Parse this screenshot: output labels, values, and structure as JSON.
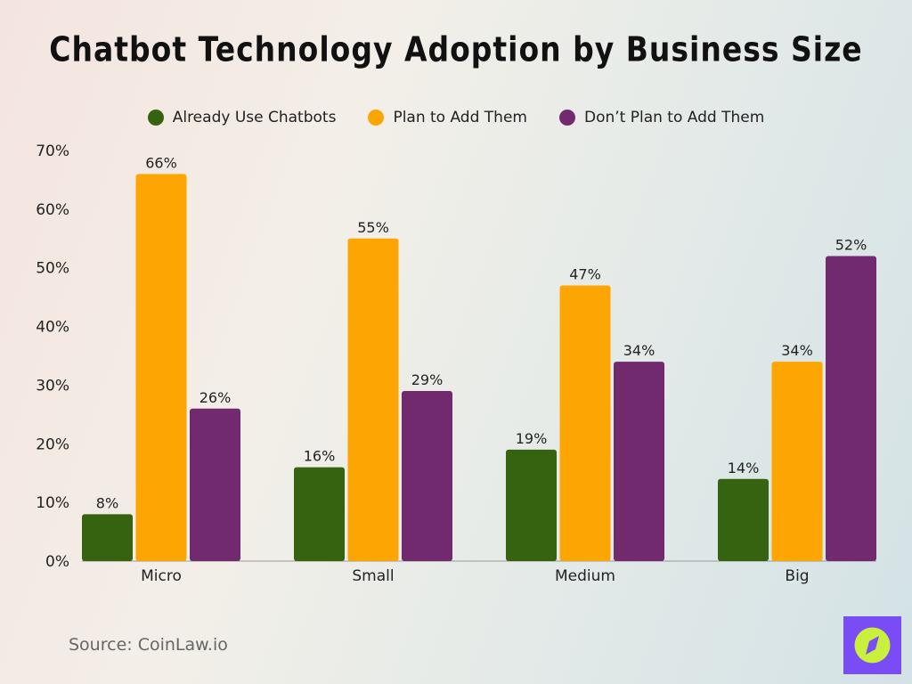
{
  "chart_data": {
    "type": "bar",
    "title": "Chatbot Technology Adoption by Business Size",
    "categories": [
      "Micro",
      "Small",
      "Medium",
      "Big"
    ],
    "series": [
      {
        "name": "Already Use Chatbots",
        "color": "#35630f",
        "values": [
          8,
          16,
          19,
          14
        ]
      },
      {
        "name": "Plan to Add Them",
        "color": "#fca503",
        "values": [
          66,
          55,
          47,
          34
        ]
      },
      {
        "name": "Don’t Plan to Add Them",
        "color": "#722a6e",
        "values": [
          26,
          29,
          34,
          52
        ]
      }
    ],
    "yticks": [
      "0%",
      "10%",
      "20%",
      "30%",
      "40%",
      "50%",
      "60%",
      "70%"
    ],
    "ylim": [
      0,
      70
    ],
    "value_suffix": "%",
    "grid": false,
    "legend": "top"
  },
  "source": "Source: CoinLaw.io",
  "logo": {
    "icon": "compass-icon",
    "bg": "#7a4cf5",
    "fg": "#c9f03c"
  }
}
